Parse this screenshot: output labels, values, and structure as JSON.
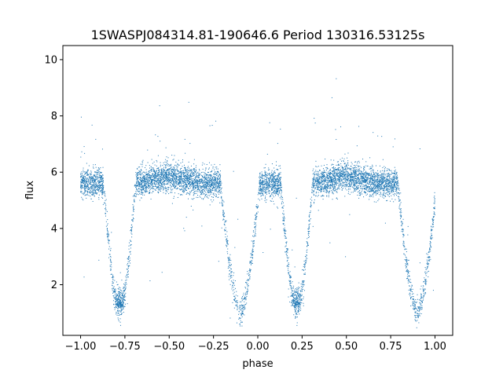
{
  "chart_data": {
    "type": "scatter",
    "title": "1SWASPJ084314.81-190646.6 Period 130316.53125s",
    "xlabel": "phase",
    "ylabel": "flux",
    "xlim": [
      -1.1,
      1.1
    ],
    "ylim": [
      0.2,
      10.5
    ],
    "x_ticks": [
      -1.0,
      -0.75,
      -0.5,
      -0.25,
      0.0,
      0.25,
      0.5,
      0.75,
      1.0
    ],
    "x_tick_labels": [
      "−1.00",
      "−0.75",
      "−0.50",
      "−0.25",
      "0.00",
      "0.25",
      "0.50",
      "0.75",
      "1.00"
    ],
    "y_ticks": [
      2,
      4,
      6,
      8,
      10
    ],
    "y_tick_labels": [
      "2",
      "4",
      "6",
      "8",
      "10"
    ],
    "grid": false,
    "point_color": "#1f77b4",
    "series": [
      {
        "baseline_flux": 5.6,
        "baseline_scatter": 0.25,
        "secondary_bump_phases": [
          -0.5,
          0.5
        ],
        "secondary_bump_height": 0.25,
        "primary_eclipses": [
          {
            "phase": -0.78,
            "min_flux": 1.0,
            "half_width": 0.09
          },
          {
            "phase": 0.22,
            "min_flux": 1.0,
            "half_width": 0.09
          }
        ],
        "secondary_eclipses": [
          {
            "phase": -0.1,
            "min_flux": 1.0,
            "half_width": 0.11
          },
          {
            "phase": 0.9,
            "min_flux": 1.0,
            "half_width": 0.11
          }
        ],
        "phase_range": [
          -1.0,
          1.0
        ]
      }
    ]
  }
}
